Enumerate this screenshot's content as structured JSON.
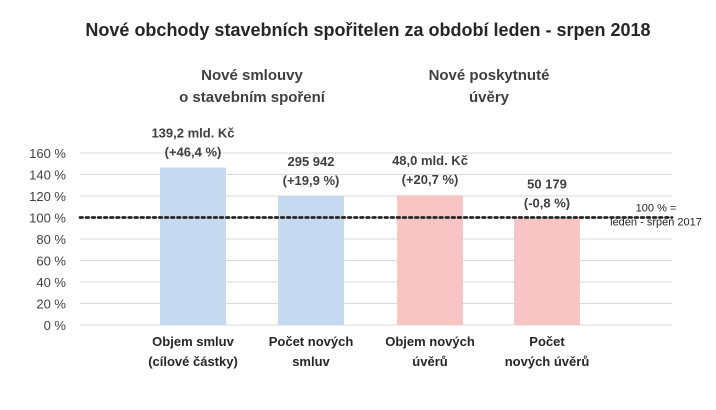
{
  "title": "Nové obchody stavebních spořitelen za období leden - srpen 2018",
  "group_labels": [
    [
      "Nové smlouvy",
      "o stavebním spoření"
    ],
    [
      "Nové poskytnuté",
      "úvěry"
    ]
  ],
  "reference_label": [
    "100 % =",
    "leden - srpen 2017"
  ],
  "colors": {
    "blue_bar": "#c5d9f1",
    "pink_bar": "#f8c5c5",
    "grid": "#d9d9d9",
    "reference_line": "#262626"
  },
  "chart_data": {
    "type": "bar",
    "categories": [
      [
        "Objem smluv",
        "(cílové částky)"
      ],
      [
        "Počet  nových",
        "smluv"
      ],
      [
        "Objem nových",
        "úvěrů"
      ],
      [
        "Počet",
        "nových úvěrů"
      ]
    ],
    "values": [
      146.4,
      119.9,
      120.7,
      99.2
    ],
    "data_labels": [
      [
        "139,2 mld. Kč",
        "(+46,4 %)"
      ],
      [
        "295 942",
        "(+19,9 %)"
      ],
      [
        "48,0 mld. Kč",
        "(+20,7 %)"
      ],
      [
        "50 179",
        "(-0,8 %)"
      ]
    ],
    "bar_colors": [
      "blue",
      "blue",
      "pink",
      "pink"
    ],
    "y_ticks": [
      "0 %",
      "20 %",
      "40 %",
      "60 %",
      "80 %",
      "100 %",
      "120 %",
      "140 %",
      "160 %"
    ],
    "ylim": [
      0,
      160
    ],
    "reference_value": 100,
    "grid": true
  }
}
